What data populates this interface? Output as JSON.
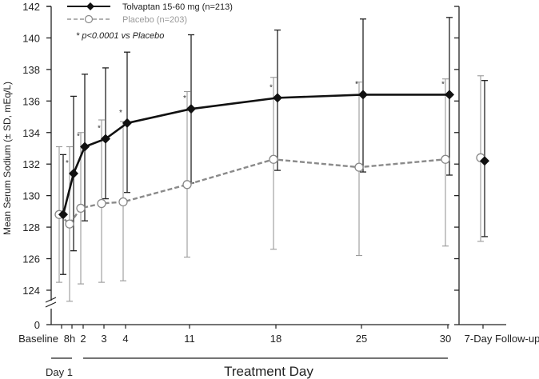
{
  "chart_data": {
    "type": "line",
    "title": "",
    "ylabel": "Mean Serum Sodium (± SD, mEq/L)",
    "xlabel": "Treatment Day",
    "day1_label": "Day 1",
    "annotation": "* p<0.0001 vs Placebo",
    "significance_marker": "*",
    "ylim": [
      124,
      142
    ],
    "y_ticks": [
      "142",
      "140",
      "138",
      "136",
      "134",
      "132",
      "130",
      "128",
      "126",
      "124"
    ],
    "y_break_tick": "0",
    "categories": [
      "Baseline",
      "8h",
      "2",
      "3",
      "4",
      "11",
      "18",
      "25",
      "30",
      "7-Day Follow-up"
    ],
    "series": [
      {
        "name": "Tolvaptan 15-60 mg (n=213)",
        "color": "#111111",
        "marker": "filled-diamond",
        "values": [
          128.8,
          131.4,
          133.1,
          133.6,
          134.6,
          135.5,
          136.2,
          136.4,
          136.4,
          132.2
        ],
        "sd_upper": [
          132.6,
          136.3,
          137.7,
          138.1,
          139.1,
          140.2,
          140.5,
          141.2,
          141.3,
          137.3
        ],
        "sd_lower": [
          125.0,
          126.5,
          128.4,
          129.8,
          130.2,
          130.8,
          131.6,
          131.5,
          131.3,
          127.4
        ],
        "significant": [
          false,
          true,
          true,
          true,
          true,
          true,
          true,
          true,
          true,
          false
        ]
      },
      {
        "name": "Placebo (n=203)",
        "color": "#8a8a8a",
        "marker": "open-circle",
        "values": [
          128.8,
          128.2,
          129.2,
          129.5,
          129.6,
          130.7,
          132.3,
          131.8,
          132.3,
          132.4
        ],
        "sd_upper": [
          133.1,
          133.1,
          134.0,
          134.8,
          134.7,
          136.6,
          137.5,
          137.2,
          137.4,
          137.6
        ],
        "sd_lower": [
          124.5,
          123.3,
          124.4,
          124.5,
          124.6,
          126.1,
          126.6,
          126.2,
          126.8,
          127.1
        ]
      }
    ],
    "legend_position": "top-left",
    "grid": false
  }
}
